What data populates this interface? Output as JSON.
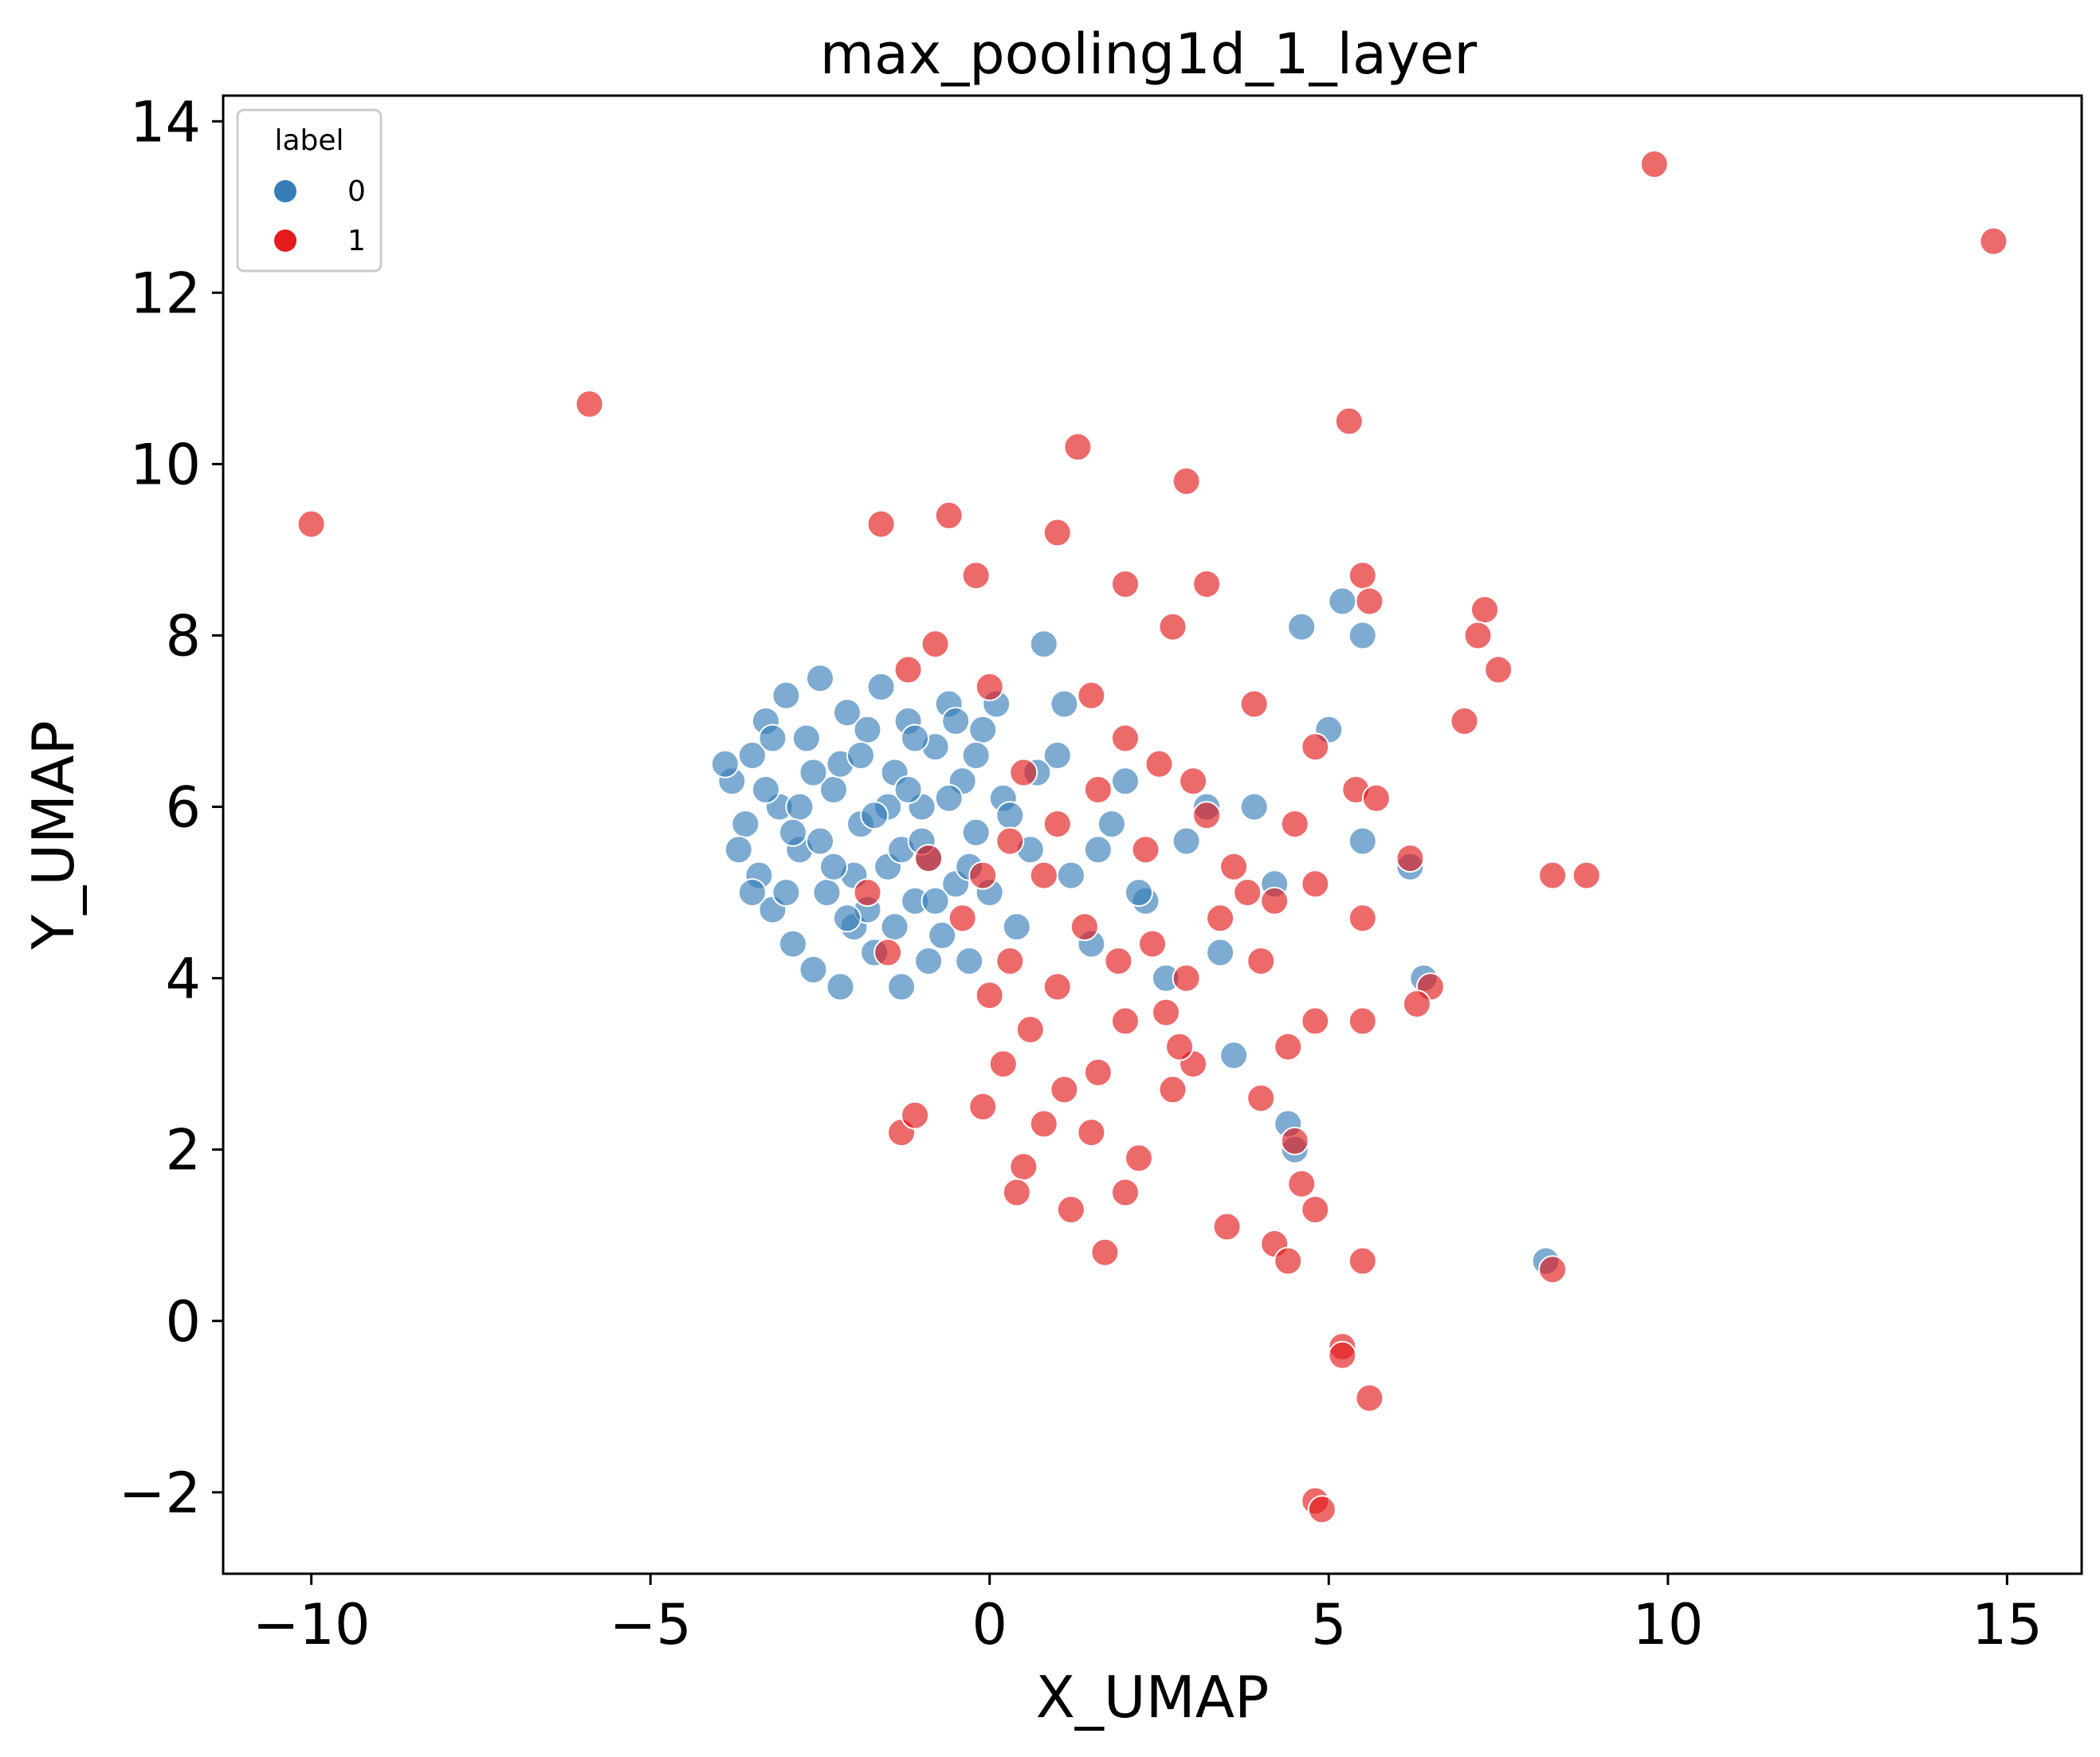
{
  "chart_data": {
    "type": "scatter",
    "title": "max_pooling1d_1_layer",
    "xlabel": "X_UMAP",
    "ylabel": "Y_UMAP",
    "xlim": [
      -11.3,
      16.1
    ],
    "ylim": [
      -2.95,
      14.3
    ],
    "xticks": [
      -10,
      -5,
      0,
      5,
      10,
      15
    ],
    "xtick_labels": [
      "−10",
      "−5",
      "0",
      "5",
      "10",
      "15"
    ],
    "yticks": [
      -2,
      0,
      2,
      4,
      6,
      8,
      10,
      12,
      14
    ],
    "ytick_labels": [
      "−2",
      "0",
      "2",
      "4",
      "6",
      "8",
      "10",
      "12",
      "14"
    ],
    "grid": false,
    "legend": {
      "title": "label",
      "placement": "top-left",
      "entries": [
        {
          "label": "0",
          "color": "#377eb8"
        },
        {
          "label": "1",
          "color": "#e41a1c"
        }
      ]
    },
    "series": [
      {
        "name": "0",
        "color": "#377eb8",
        "points": [
          [
            -3.8,
            6.3
          ],
          [
            -3.6,
            5.8
          ],
          [
            -3.5,
            6.6
          ],
          [
            -3.4,
            5.2
          ],
          [
            -3.3,
            7.0
          ],
          [
            -3.2,
            4.8
          ],
          [
            -3.1,
            6.0
          ],
          [
            -3.0,
            7.3
          ],
          [
            -2.9,
            4.4
          ],
          [
            -2.8,
            5.5
          ],
          [
            -2.7,
            6.8
          ],
          [
            -2.6,
            4.1
          ],
          [
            -2.5,
            7.5
          ],
          [
            -2.4,
            5.0
          ],
          [
            -2.3,
            6.2
          ],
          [
            -2.2,
            3.9
          ],
          [
            -2.1,
            7.1
          ],
          [
            -2.0,
            4.6
          ],
          [
            -1.9,
            5.8
          ],
          [
            -1.8,
            6.9
          ],
          [
            -1.7,
            4.3
          ],
          [
            -1.6,
            7.4
          ],
          [
            -1.5,
            5.3
          ],
          [
            -1.4,
            6.4
          ],
          [
            -1.3,
            3.9
          ],
          [
            -1.2,
            7.0
          ],
          [
            -1.1,
            4.9
          ],
          [
            -1.0,
            6.0
          ],
          [
            -0.9,
            5.4
          ],
          [
            -0.8,
            6.7
          ],
          [
            -0.7,
            4.5
          ],
          [
            -0.6,
            7.2
          ],
          [
            -0.5,
            5.1
          ],
          [
            -0.4,
            6.3
          ],
          [
            -0.3,
            4.2
          ],
          [
            -0.2,
            5.7
          ],
          [
            -0.1,
            6.9
          ],
          [
            0.0,
            5.0
          ],
          [
            0.2,
            6.1
          ],
          [
            0.4,
            4.6
          ],
          [
            0.6,
            5.5
          ],
          [
            0.8,
            7.9
          ],
          [
            1.0,
            6.6
          ],
          [
            1.2,
            5.2
          ],
          [
            1.5,
            4.4
          ],
          [
            1.8,
            5.8
          ],
          [
            2.0,
            6.3
          ],
          [
            2.3,
            4.9
          ],
          [
            2.6,
            4.0
          ],
          [
            2.9,
            5.6
          ],
          [
            3.2,
            6.0
          ],
          [
            3.4,
            4.3
          ],
          [
            3.6,
            3.1
          ],
          [
            3.9,
            6.0
          ],
          [
            4.2,
            5.1
          ],
          [
            4.4,
            2.3
          ],
          [
            4.5,
            2.0
          ],
          [
            4.6,
            8.1
          ],
          [
            5.0,
            6.9
          ],
          [
            5.2,
            8.4
          ],
          [
            5.5,
            8.0
          ],
          [
            5.5,
            5.6
          ],
          [
            6.2,
            5.3
          ],
          [
            6.4,
            4.0
          ],
          [
            8.2,
            0.7
          ],
          [
            -3.7,
            5.5
          ],
          [
            -3.3,
            6.2
          ],
          [
            -3.0,
            5.0
          ],
          [
            -2.8,
            6.0
          ],
          [
            -2.5,
            5.6
          ],
          [
            -2.2,
            6.5
          ],
          [
            -2.0,
            5.2
          ],
          [
            -1.8,
            4.8
          ],
          [
            -1.5,
            6.0
          ],
          [
            -1.3,
            5.5
          ],
          [
            -1.1,
            6.8
          ],
          [
            -0.9,
            4.2
          ],
          [
            -0.6,
            6.1
          ],
          [
            -0.3,
            5.3
          ],
          [
            0.1,
            7.2
          ],
          [
            -3.9,
            6.5
          ],
          [
            -3.5,
            5.0
          ],
          [
            -3.2,
            6.8
          ],
          [
            -2.9,
            5.7
          ],
          [
            -2.6,
            6.4
          ],
          [
            -2.3,
            5.3
          ],
          [
            -2.1,
            4.7
          ],
          [
            -1.9,
            6.6
          ],
          [
            -1.7,
            5.9
          ],
          [
            -1.4,
            4.6
          ],
          [
            -1.2,
            6.2
          ],
          [
            -1.0,
            5.6
          ],
          [
            -0.8,
            4.9
          ],
          [
            -0.5,
            7.0
          ],
          [
            -0.2,
            6.6
          ],
          [
            0.3,
            5.9
          ],
          [
            0.7,
            6.4
          ],
          [
            1.1,
            7.2
          ],
          [
            1.6,
            5.5
          ],
          [
            2.2,
            5.0
          ]
        ]
      },
      {
        "name": "1",
        "color": "#e41a1c",
        "points": [
          [
            -10.0,
            9.3
          ],
          [
            -5.9,
            10.7
          ],
          [
            9.8,
            13.5
          ],
          [
            14.8,
            12.6
          ],
          [
            5.3,
            10.5
          ],
          [
            1.3,
            10.2
          ],
          [
            2.9,
            9.8
          ],
          [
            -1.6,
            9.3
          ],
          [
            -0.6,
            9.4
          ],
          [
            1.0,
            9.2
          ],
          [
            2.0,
            8.6
          ],
          [
            -0.2,
            8.7
          ],
          [
            3.2,
            8.6
          ],
          [
            5.5,
            8.7
          ],
          [
            5.6,
            8.4
          ],
          [
            7.3,
            8.3
          ],
          [
            7.2,
            8.0
          ],
          [
            7.5,
            7.6
          ],
          [
            7.0,
            7.0
          ],
          [
            3.9,
            7.2
          ],
          [
            2.7,
            8.1
          ],
          [
            1.5,
            7.3
          ],
          [
            0.0,
            7.4
          ],
          [
            -0.8,
            7.9
          ],
          [
            -1.2,
            7.6
          ],
          [
            4.8,
            6.7
          ],
          [
            5.4,
            6.2
          ],
          [
            5.7,
            6.1
          ],
          [
            6.2,
            5.4
          ],
          [
            8.3,
            5.2
          ],
          [
            8.8,
            5.2
          ],
          [
            4.5,
            5.8
          ],
          [
            4.2,
            4.9
          ],
          [
            4.8,
            5.1
          ],
          [
            5.5,
            4.7
          ],
          [
            6.5,
            3.9
          ],
          [
            6.3,
            3.7
          ],
          [
            5.5,
            3.5
          ],
          [
            4.8,
            3.5
          ],
          [
            4.4,
            3.2
          ],
          [
            4.0,
            2.6
          ],
          [
            4.5,
            2.1
          ],
          [
            4.6,
            1.6
          ],
          [
            4.8,
            1.3
          ],
          [
            4.2,
            0.9
          ],
          [
            4.4,
            0.7
          ],
          [
            5.5,
            0.7
          ],
          [
            3.5,
            1.1
          ],
          [
            3.0,
            3.0
          ],
          [
            2.7,
            2.7
          ],
          [
            2.8,
            3.2
          ],
          [
            2.0,
            3.5
          ],
          [
            1.6,
            2.9
          ],
          [
            1.5,
            2.2
          ],
          [
            1.1,
            2.7
          ],
          [
            0.8,
            2.3
          ],
          [
            0.5,
            1.8
          ],
          [
            0.4,
            1.5
          ],
          [
            1.2,
            1.3
          ],
          [
            1.7,
            0.8
          ],
          [
            2.2,
            1.9
          ],
          [
            2.0,
            1.5
          ],
          [
            -1.3,
            2.2
          ],
          [
            -1.1,
            2.4
          ],
          [
            -0.1,
            2.5
          ],
          [
            0.2,
            3.0
          ],
          [
            0.0,
            3.8
          ],
          [
            0.3,
            4.2
          ],
          [
            0.6,
            3.4
          ],
          [
            1.0,
            3.9
          ],
          [
            1.4,
            4.6
          ],
          [
            1.9,
            4.2
          ],
          [
            2.4,
            4.4
          ],
          [
            2.9,
            4.0
          ],
          [
            3.4,
            4.7
          ],
          [
            3.8,
            5.0
          ],
          [
            3.2,
            5.9
          ],
          [
            2.5,
            6.5
          ],
          [
            2.0,
            6.8
          ],
          [
            1.6,
            6.2
          ],
          [
            1.0,
            5.8
          ],
          [
            0.5,
            6.4
          ],
          [
            0.3,
            5.6
          ],
          [
            -0.1,
            5.2
          ],
          [
            5.2,
            -0.3
          ],
          [
            5.2,
            -0.4
          ],
          [
            5.6,
            -0.9
          ],
          [
            4.8,
            -2.1
          ],
          [
            4.9,
            -2.2
          ],
          [
            8.3,
            0.6
          ],
          [
            -1.8,
            5.0
          ],
          [
            -0.9,
            5.4
          ],
          [
            -1.5,
            4.3
          ],
          [
            -0.4,
            4.7
          ],
          [
            0.8,
            5.2
          ],
          [
            2.3,
            5.5
          ],
          [
            3.0,
            6.3
          ],
          [
            3.6,
            5.3
          ],
          [
            4.0,
            4.2
          ],
          [
            2.6,
            3.6
          ]
        ]
      }
    ]
  }
}
